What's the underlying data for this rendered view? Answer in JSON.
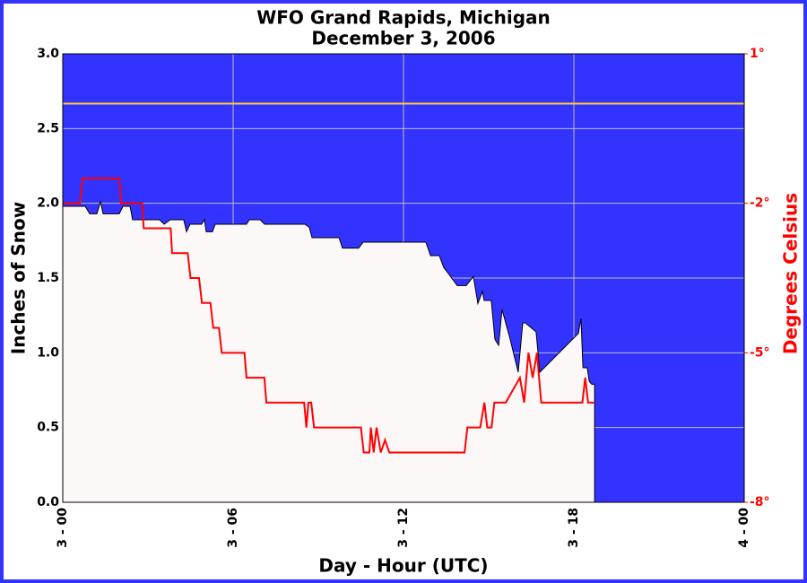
{
  "chart_data": {
    "type": "line",
    "title": "WFO Grand Rapids, Michigan",
    "subtitle": "December 3, 2006",
    "x_label": "Day - Hour (UTC)",
    "y_label": "Inches of Snow",
    "y2_label": "Degrees Celsius",
    "xlim": [
      0,
      24
    ],
    "xticks": [
      {
        "value": 0,
        "label": "3 - 00"
      },
      {
        "value": 6,
        "label": "3 - 06"
      },
      {
        "value": 12,
        "label": "3 - 12"
      },
      {
        "value": 18,
        "label": "3 - 18"
      },
      {
        "value": 24,
        "label": "4 - 00"
      }
    ],
    "ylim": [
      0,
      3
    ],
    "yticks": [
      {
        "value": 0,
        "label": "0.0"
      },
      0.5,
      {
        "value": 1,
        "label": "1.0"
      },
      1.5,
      {
        "value": 2,
        "label": "2.0"
      },
      2.5,
      {
        "value": 3,
        "label": "3.0"
      }
    ],
    "y2lim": [
      -8,
      1
    ],
    "y2ticks": [
      {
        "value": -8,
        "label": "-8°"
      },
      {
        "value": -5,
        "label": "-5°"
      },
      {
        "value": -2,
        "label": "-2°"
      },
      {
        "value": 1,
        "label": "1°"
      }
    ],
    "grid": true,
    "background_color": "#3333ff",
    "reference_line": {
      "axis": "y2",
      "value": 0,
      "color": "#ffcc33"
    },
    "series": [
      {
        "style": "area",
        "color": "#fdf8f8",
        "outline": "#000000",
        "x": [
          0,
          0.79,
          0.95,
          1.2,
          1.33,
          1.42,
          1.99,
          2.12,
          2.37,
          2.46,
          3.41,
          3.57,
          3.79,
          4.26,
          4.36,
          4.48,
          4.89,
          4.99,
          5.05,
          5.27,
          5.37,
          6.47,
          6.57,
          6.95,
          7.11,
          8.53,
          8.68,
          8.78,
          9.73,
          9.85,
          10.42,
          10.58,
          12.79,
          12.95,
          13.26,
          13.42,
          13.58,
          13.89,
          14.21,
          14.46,
          14.62,
          14.78,
          14.84,
          15.09,
          15.22,
          15.35,
          15.47,
          15.73,
          16.04,
          16.2,
          16.29,
          16.67,
          16.8,
          18.16,
          18.25,
          18.32,
          18.47,
          18.54,
          18.63,
          18.73
        ],
        "values": [
          1.98,
          1.98,
          1.93,
          1.93,
          2.01,
          1.93,
          1.93,
          1.98,
          1.98,
          1.89,
          1.89,
          1.86,
          1.89,
          1.89,
          1.81,
          1.86,
          1.86,
          1.89,
          1.81,
          1.81,
          1.86,
          1.86,
          1.89,
          1.89,
          1.86,
          1.86,
          1.84,
          1.77,
          1.77,
          1.7,
          1.7,
          1.74,
          1.74,
          1.65,
          1.65,
          1.57,
          1.53,
          1.45,
          1.45,
          1.51,
          1.33,
          1.41,
          1.35,
          1.35,
          1.09,
          1.05,
          1.29,
          1.11,
          0.87,
          1.2,
          1.2,
          1.14,
          0.87,
          1.13,
          1.23,
          0.9,
          0.9,
          0.81,
          0.79,
          0.79
        ]
      },
      {
        "style": "line",
        "axis": "y2",
        "color": "#ff0000",
        "x": [
          0,
          0.6,
          0.7,
          2.0,
          2.05,
          2.8,
          2.85,
          3.8,
          3.85,
          4.4,
          4.5,
          4.8,
          4.9,
          5.2,
          5.3,
          5.5,
          5.6,
          6.4,
          6.47,
          7.1,
          7.17,
          8.5,
          8.58,
          8.65,
          8.75,
          8.85,
          10.5,
          10.6,
          10.8,
          10.85,
          10.95,
          11.05,
          11.2,
          11.35,
          11.5,
          14.15,
          14.25,
          14.7,
          14.85,
          14.95,
          15.1,
          15.2,
          15.6,
          16.1,
          16.25,
          16.4,
          16.55,
          16.7,
          16.85,
          18.3,
          18.4,
          18.5,
          18.7
        ],
        "values": [
          -2.0,
          -2.0,
          -1.5,
          -1.5,
          -2.0,
          -2.0,
          -2.5,
          -2.5,
          -3.0,
          -3.0,
          -3.5,
          -3.5,
          -4.0,
          -4.0,
          -4.5,
          -4.5,
          -5.0,
          -5.0,
          -5.5,
          -5.5,
          -6.0,
          -6.0,
          -6.5,
          -6.0,
          -6.0,
          -6.5,
          -6.5,
          -7.0,
          -7.0,
          -6.5,
          -7.0,
          -6.5,
          -7.0,
          -6.75,
          -7.0,
          -7.0,
          -6.5,
          -6.5,
          -6.0,
          -6.5,
          -6.5,
          -6.0,
          -6.0,
          -5.5,
          -6.0,
          -5.0,
          -5.5,
          -5.0,
          -6.0,
          -6.0,
          -5.5,
          -6.0,
          -6.0
        ]
      }
    ]
  }
}
